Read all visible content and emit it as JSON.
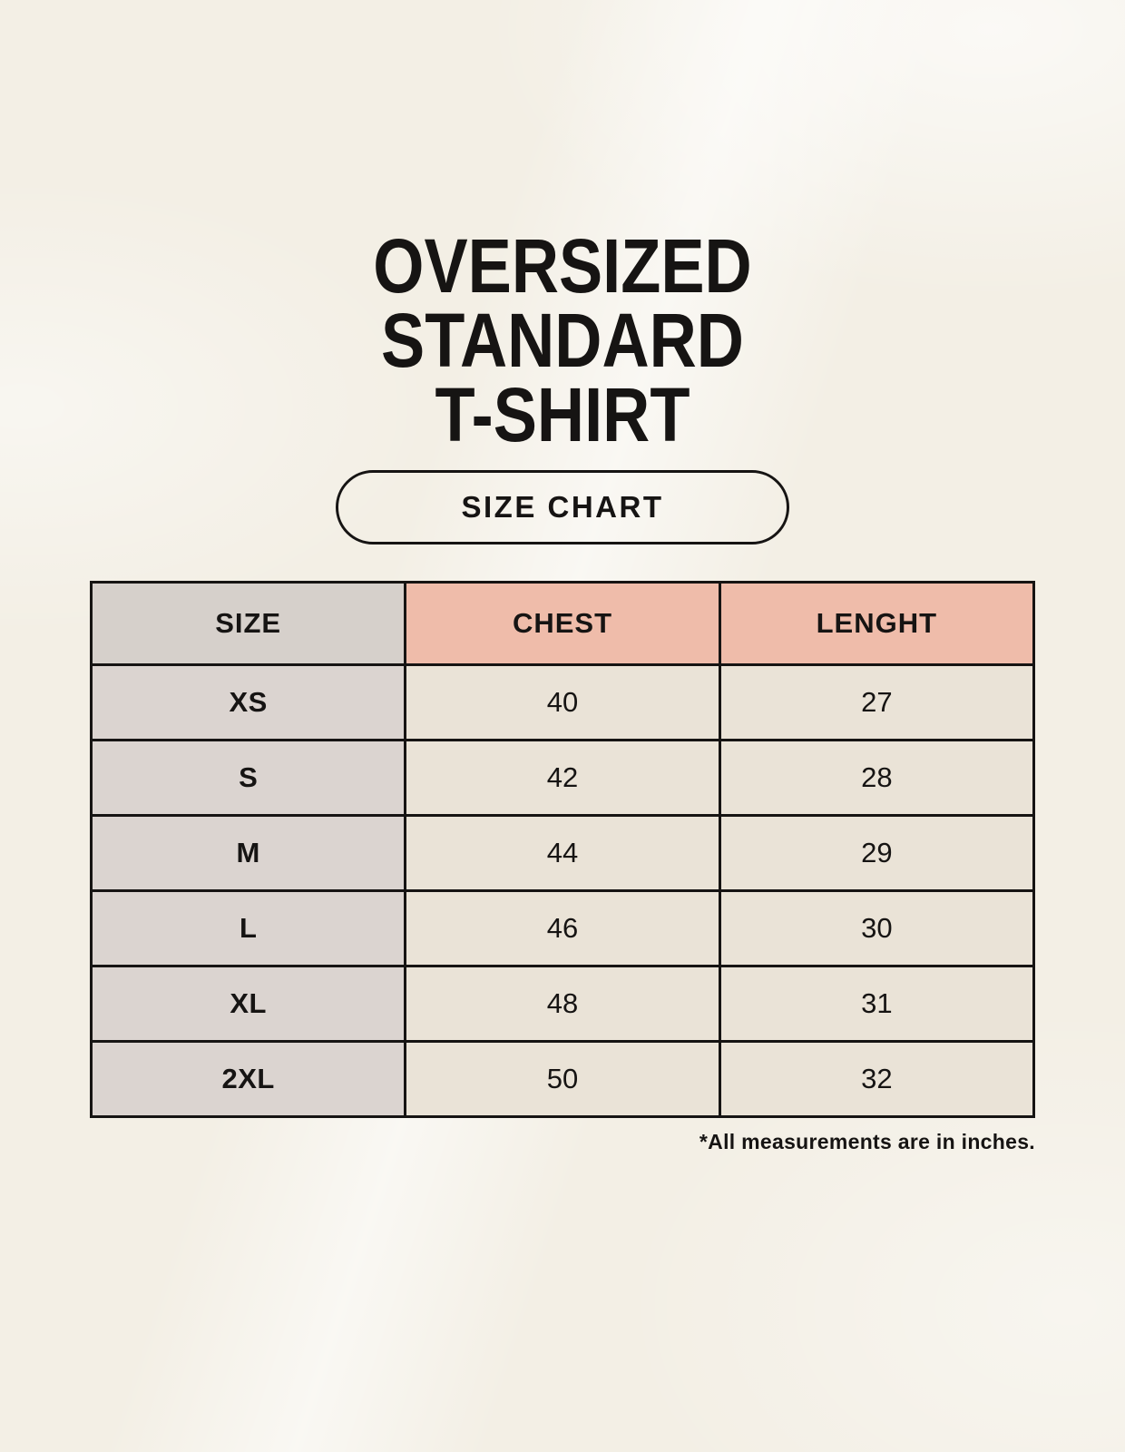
{
  "header": {
    "title_lines": [
      "OVERSIZED",
      "STANDARD",
      "T-SHIRT"
    ],
    "badge_label": "SIZE CHART"
  },
  "chart_data": {
    "type": "table",
    "title": "OVERSIZED STANDARD T-SHIRT",
    "subtitle": "SIZE CHART",
    "columns": [
      "SIZE",
      "CHEST",
      "LENGHT"
    ],
    "rows": [
      {
        "size": "XS",
        "chest": "40",
        "lenght": "27"
      },
      {
        "size": "S",
        "chest": "42",
        "lenght": "28"
      },
      {
        "size": "M",
        "chest": "44",
        "lenght": "29"
      },
      {
        "size": "L",
        "chest": "46",
        "lenght": "30"
      },
      {
        "size": "XL",
        "chest": "48",
        "lenght": "31"
      },
      {
        "size": "2XL",
        "chest": "50",
        "lenght": "32"
      }
    ],
    "units_note": "*All measurements are in inches."
  },
  "colors": {
    "background": "#f3efe5",
    "text": "#161413",
    "table_border": "#161413",
    "header_size_bg": "#d6d0cb",
    "header_measure_bg": "#efbcaa",
    "size_column_bg": "#dbd4d0",
    "value_cell_bg": "#eae3d7"
  }
}
